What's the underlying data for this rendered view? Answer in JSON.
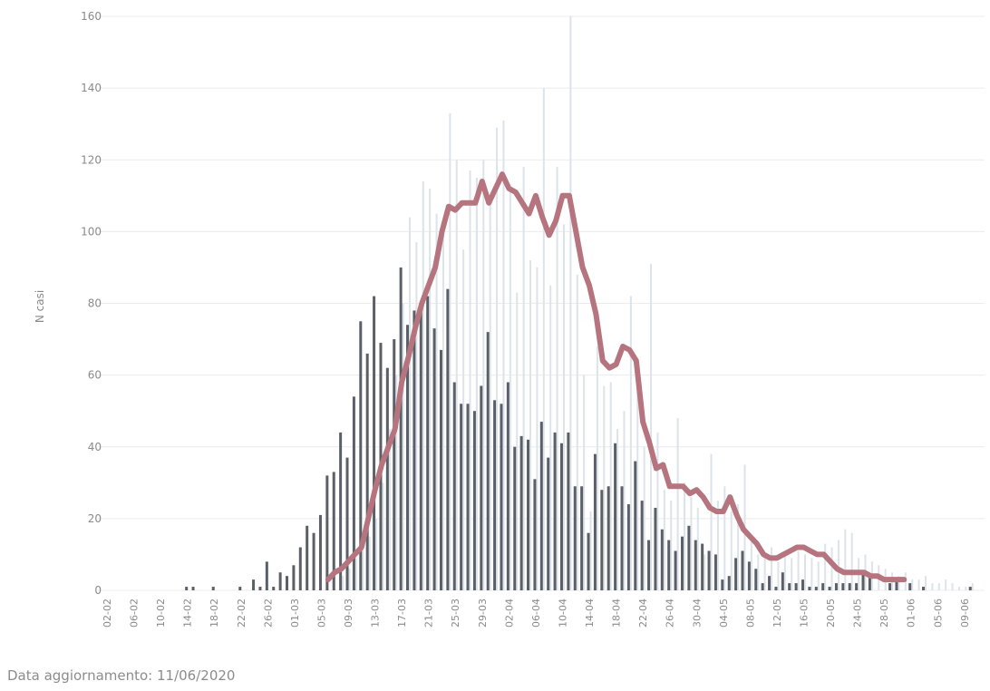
{
  "chart_data": {
    "type": "bar",
    "ylabel": "N casi",
    "ylim": [
      0,
      160
    ],
    "yticks": [
      0,
      20,
      40,
      60,
      80,
      100,
      120,
      140,
      160
    ],
    "grid": "horizontal",
    "x_start": "02-02",
    "x_tick_labels": [
      "02-02",
      "06-02",
      "10-02",
      "14-02",
      "18-02",
      "22-02",
      "26-02",
      "01-03",
      "05-03",
      "09-03",
      "13-03",
      "17-03",
      "21-03",
      "25-03",
      "29-03",
      "02-04",
      "06-04",
      "10-04",
      "14-04",
      "18-04",
      "22-04",
      "26-04",
      "30-04",
      "04-05",
      "08-05",
      "12-05",
      "16-05",
      "20-05",
      "24-05",
      "28-05",
      "01-06",
      "05-06",
      "09-06"
    ],
    "colors": {
      "dark_bars": "#5b6068",
      "light_bars": "#dce3ea",
      "line": "#b5747e",
      "grid": "#ececec"
    },
    "series": [
      {
        "values": [
          0,
          0,
          0,
          0,
          0,
          0,
          0,
          0,
          0,
          0,
          0,
          0,
          1,
          1,
          0,
          0,
          1,
          0,
          0,
          0,
          1,
          0,
          3,
          1,
          8,
          1,
          5,
          4,
          7,
          12,
          18,
          16,
          21,
          32,
          33,
          44,
          37,
          54,
          75,
          66,
          82,
          69,
          62,
          70,
          90,
          74,
          78,
          80,
          82,
          73,
          67,
          84,
          58,
          52,
          52,
          50,
          57,
          72,
          53,
          52,
          58,
          40,
          43,
          42,
          31,
          47,
          37,
          44,
          41,
          44,
          29,
          29,
          16,
          38,
          28,
          29,
          41,
          29,
          24,
          36,
          25,
          14,
          23,
          17,
          14,
          11,
          15,
          18,
          14,
          13,
          11,
          10,
          3,
          4,
          9,
          11,
          8,
          6,
          2,
          4,
          1,
          5,
          2,
          2,
          3,
          1,
          1,
          2,
          1,
          2,
          2,
          2,
          2,
          5,
          4,
          0,
          0,
          2,
          3,
          0,
          2,
          0,
          1,
          0,
          0,
          0,
          0,
          0,
          0,
          1,
          0,
          0
        ]
      },
      {
        "values": [
          0,
          0,
          0,
          0,
          0,
          0,
          0,
          0,
          0,
          0,
          0,
          0,
          0,
          0,
          0,
          0,
          0,
          0,
          0,
          0,
          0,
          0,
          0,
          0,
          0,
          0,
          0,
          0,
          0,
          0,
          0,
          0,
          0,
          0,
          0,
          4,
          6,
          9,
          12,
          15,
          20,
          30,
          45,
          60,
          80,
          104,
          97,
          114,
          112,
          105,
          100,
          133,
          120,
          95,
          117,
          115,
          120,
          108,
          129,
          131,
          112,
          83,
          118,
          92,
          90,
          140,
          85,
          118,
          102,
          160,
          88,
          60,
          22,
          68,
          57,
          58,
          45,
          50,
          82,
          58,
          40,
          91,
          44,
          28,
          25,
          48,
          30,
          26,
          23,
          10,
          38,
          25,
          29,
          22,
          24,
          35,
          15,
          10,
          9,
          12,
          8,
          10,
          9,
          11,
          10,
          9,
          8,
          13,
          12,
          14,
          17,
          16,
          9,
          10,
          8,
          7,
          6,
          5,
          4,
          5,
          3,
          3,
          4,
          2,
          2,
          3,
          2,
          1,
          1,
          2
        ]
      },
      {
        "values": [
          null,
          null,
          null,
          null,
          null,
          null,
          null,
          null,
          null,
          null,
          null,
          null,
          null,
          null,
          null,
          null,
          null,
          null,
          null,
          null,
          null,
          null,
          null,
          null,
          null,
          null,
          null,
          null,
          null,
          null,
          null,
          null,
          null,
          3,
          5,
          6,
          8,
          10,
          12,
          20,
          28,
          35,
          40,
          45,
          58,
          65,
          73,
          80,
          85,
          90,
          100,
          107,
          106,
          108,
          108,
          108,
          114,
          108,
          112,
          116,
          112,
          111,
          108,
          105,
          110,
          104,
          99,
          103,
          110,
          110,
          100,
          90,
          85,
          77,
          64,
          62,
          63,
          68,
          67,
          64,
          47,
          41,
          34,
          35,
          29,
          29,
          29,
          27,
          28,
          26,
          23,
          22,
          22,
          26,
          21,
          17,
          15,
          13,
          10,
          9,
          9,
          10,
          11,
          12,
          12,
          11,
          10,
          10,
          8,
          6,
          5,
          5,
          5,
          5,
          4,
          4,
          3,
          3,
          3,
          3
        ]
      }
    ]
  },
  "footer": {
    "label": "Data aggiornamento: 11/06/2020"
  }
}
